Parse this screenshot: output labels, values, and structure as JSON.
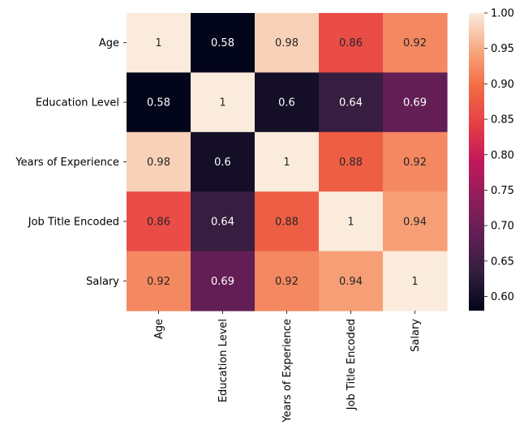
{
  "chart_data": {
    "type": "heatmap",
    "title": "",
    "xlabel": "",
    "ylabel": "",
    "x_categories": [
      "Age",
      "Education Level",
      "Years of Experience",
      "Job Title Encoded",
      "Salary"
    ],
    "y_categories": [
      "Age",
      "Education Level",
      "Years of Experience",
      "Job Title Encoded",
      "Salary"
    ],
    "values": [
      [
        1.0,
        0.58,
        0.98,
        0.86,
        0.92
      ],
      [
        0.58,
        1.0,
        0.6,
        0.64,
        0.69
      ],
      [
        0.98,
        0.6,
        1.0,
        0.88,
        0.92
      ],
      [
        0.86,
        0.64,
        0.88,
        1.0,
        0.94
      ],
      [
        0.92,
        0.69,
        0.92,
        0.94,
        1.0
      ]
    ],
    "cell_labels": [
      [
        "1",
        "0.58",
        "0.98",
        "0.86",
        "0.92"
      ],
      [
        "0.58",
        "1",
        "0.6",
        "0.64",
        "0.69"
      ],
      [
        "0.98",
        "0.6",
        "1",
        "0.88",
        "0.92"
      ],
      [
        "0.86",
        "0.64",
        "0.88",
        "1",
        "0.94"
      ],
      [
        "0.92",
        "0.69",
        "0.92",
        "0.94",
        "1"
      ]
    ],
    "colormap": "rocket",
    "colorbar": {
      "range": [
        0.58,
        1.0
      ],
      "ticks": [
        0.6,
        0.65,
        0.7,
        0.75,
        0.8,
        0.85,
        0.9,
        0.95,
        1.0
      ],
      "tick_labels": [
        "0.60",
        "0.65",
        "0.70",
        "0.75",
        "0.80",
        "0.85",
        "0.90",
        "0.95",
        "1.00"
      ],
      "placement": "right"
    }
  }
}
